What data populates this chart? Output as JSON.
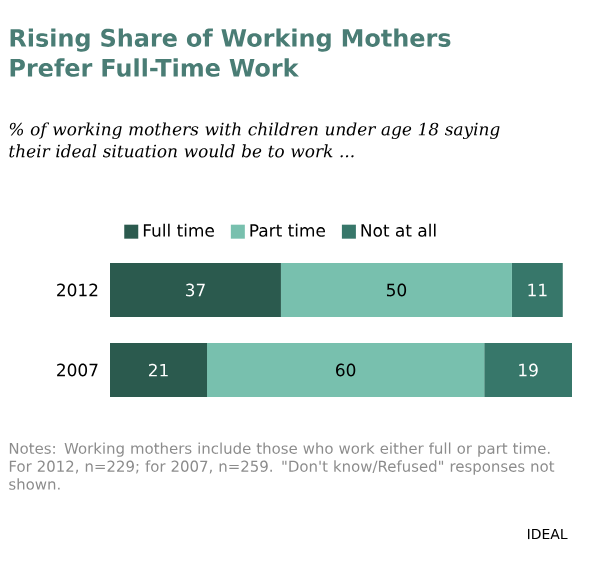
{
  "chart_data": {
    "type": "bar",
    "orientation": "horizontal",
    "stacked": true,
    "title": "Rising Share of Working Mothers Prefer Full-Time Work",
    "subtitle": "% of working mothers with children under age 18 saying their ideal situation would be to work ...",
    "categories": [
      "2012",
      "2007"
    ],
    "series": [
      {
        "name": "Full time",
        "color": "#2b5a4e",
        "values": [
          37,
          21
        ]
      },
      {
        "name": "Part time",
        "color": "#78c0ae",
        "values": [
          50,
          60
        ]
      },
      {
        "name": "Not at all",
        "color": "#37776a",
        "values": [
          11,
          19
        ]
      }
    ],
    "data_labels": true,
    "legend": "top",
    "annotations": [
      "Notes: Working mothers include those who work either full or part time. For 2012, n=229; for 2007, n=259. \"Don't know/Refused\" responses not shown.",
      "IDEAL"
    ]
  }
}
